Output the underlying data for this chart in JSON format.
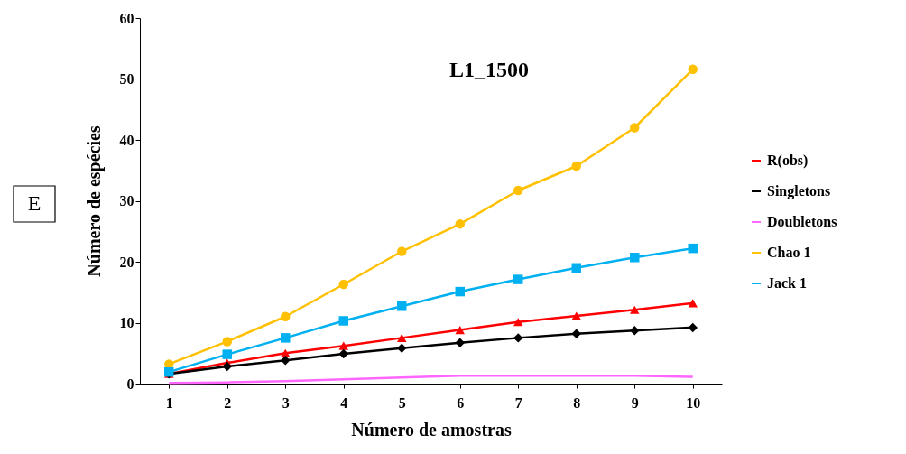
{
  "chart_data": {
    "type": "line",
    "title": "L1_1500",
    "xlabel": "Número de amostras",
    "ylabel": "Número de espécies",
    "annotations": [
      "E"
    ],
    "categories": [
      "1",
      "2",
      "3",
      "4",
      "5",
      "6",
      "7",
      "8",
      "9",
      "10"
    ],
    "series": [
      {
        "name": "R(obs)",
        "color": "#ff0000",
        "marker": "triangle",
        "values": [
          1.6,
          3.4,
          5.0,
          6.2,
          7.5,
          8.8,
          10.1,
          11.1,
          12.1,
          13.2
        ]
      },
      {
        "name": "Singletons",
        "color": "#000000",
        "marker": "diamond",
        "values": [
          1.6,
          2.8,
          3.8,
          4.9,
          5.8,
          6.7,
          7.5,
          8.2,
          8.7,
          9.2
        ]
      },
      {
        "name": "Doubletons",
        "color": "#ff66ff",
        "marker": "none",
        "values": [
          0.1,
          0.2,
          0.4,
          0.7,
          1.0,
          1.3,
          1.3,
          1.3,
          1.3,
          1.1
        ]
      },
      {
        "name": "Chao 1",
        "color": "#ffc000",
        "marker": "circle",
        "values": [
          3.2,
          6.9,
          11.0,
          16.3,
          21.7,
          26.2,
          31.7,
          35.7,
          42.0,
          51.6
        ]
      },
      {
        "name": "Jack 1",
        "color": "#00b0f0",
        "marker": "square",
        "values": [
          1.9,
          4.8,
          7.5,
          10.3,
          12.7,
          15.1,
          17.1,
          19.0,
          20.7,
          22.2
        ]
      }
    ],
    "ylim": [
      0,
      60
    ],
    "yticks": [
      0,
      10,
      20,
      30,
      40,
      50,
      60
    ],
    "grid": false,
    "legend": "right"
  }
}
